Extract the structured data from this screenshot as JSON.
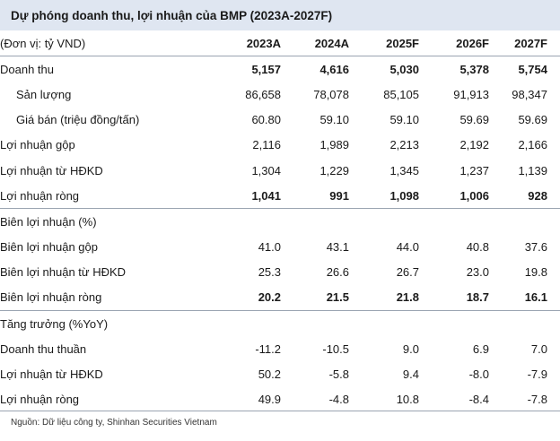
{
  "title": "Dự phóng doanh thu, lợi nhuận của BMP (2023A-2027F)",
  "header": {
    "unit_label": "(Đơn vị: tỷ VND)",
    "years": [
      "2023A",
      "2024A",
      "2025F",
      "2026F",
      "2027F"
    ]
  },
  "rows": [
    {
      "label": "Doanh thu",
      "values": [
        "5,157",
        "4,616",
        "5,030",
        "5,378",
        "5,754"
      ]
    },
    {
      "label": "Sản lượng",
      "values": [
        "86,658",
        "78,078",
        "85,105",
        "91,913",
        "98,347"
      ]
    },
    {
      "label": "Giá bán (triệu đồng/tấn)",
      "values": [
        "60.80",
        "59.10",
        "59.10",
        "59.69",
        "59.69"
      ]
    },
    {
      "label": "Lợi nhuận gộp",
      "values": [
        "2,116",
        "1,989",
        "2,213",
        "2,192",
        "2,166"
      ]
    },
    {
      "label": "Lợi nhuận từ HĐKD",
      "values": [
        "1,304",
        "1,229",
        "1,345",
        "1,237",
        "1,139"
      ]
    },
    {
      "label": "Lợi nhuận ròng",
      "values": [
        "1,041",
        "991",
        "1,098",
        "1,006",
        "928"
      ]
    },
    {
      "label": "Biên lợi nhuận (%)",
      "values": [
        "",
        "",
        "",
        "",
        ""
      ]
    },
    {
      "label": "Biên lợi nhuận gộp",
      "values": [
        "41.0",
        "43.1",
        "44.0",
        "40.8",
        "37.6"
      ]
    },
    {
      "label": "Biên lợi nhuận từ HĐKD",
      "values": [
        "25.3",
        "26.6",
        "26.7",
        "23.0",
        "19.8"
      ]
    },
    {
      "label": "Biên lợi nhuận ròng",
      "values": [
        "20.2",
        "21.5",
        "21.8",
        "18.7",
        "16.1"
      ]
    },
    {
      "label": "Tăng trưởng (%YoY)",
      "values": [
        "",
        "",
        "",
        "",
        ""
      ]
    },
    {
      "label": "Doanh thu thuần",
      "values": [
        "-11.2",
        "-10.5",
        "9.0",
        "6.9",
        "7.0"
      ]
    },
    {
      "label": "Lợi nhuận từ HĐKD",
      "values": [
        "50.2",
        "-5.8",
        "9.4",
        "-8.0",
        "-7.9"
      ]
    },
    {
      "label": "Lợi nhuận ròng",
      "values": [
        "49.9",
        "-4.8",
        "10.8",
        "-8.4",
        "-7.8"
      ]
    }
  ],
  "source": "Nguồn: Dữ liệu công ty, Shinhan Securities Vietnam"
}
